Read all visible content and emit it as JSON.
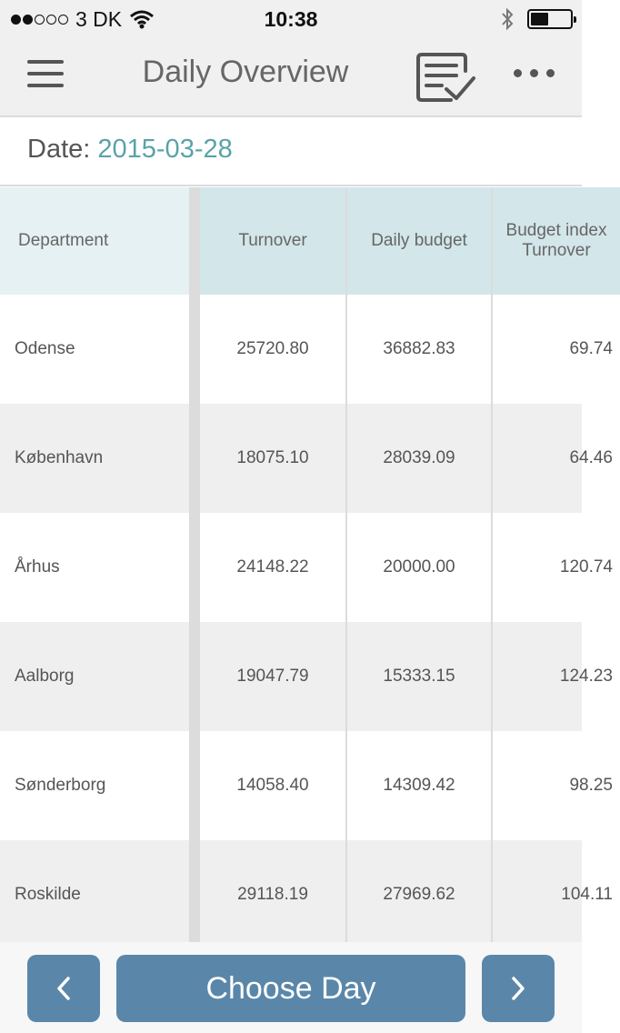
{
  "status_bar": {
    "carrier": "3 DK",
    "time": "10:38",
    "signal_bars": 2,
    "battery_level": 0.45
  },
  "nav": {
    "title": "Daily Overview"
  },
  "date": {
    "label": "Date:",
    "value": "2015-03-28"
  },
  "table": {
    "headers": {
      "department": "Department",
      "turnover": "Turnover",
      "daily_budget": "Daily budget",
      "budget_index_line1": "Budget index",
      "budget_index_line2": "Turnover"
    },
    "rows": [
      {
        "department": "Odense",
        "turnover": "25720.80",
        "daily_budget": "36882.83",
        "budget_index": "69.74"
      },
      {
        "department": "København",
        "turnover": "18075.10",
        "daily_budget": "28039.09",
        "budget_index": "64.46"
      },
      {
        "department": "Århus",
        "turnover": "24148.22",
        "daily_budget": "20000.00",
        "budget_index": "120.74"
      },
      {
        "department": "Aalborg",
        "turnover": "19047.79",
        "daily_budget": "15333.15",
        "budget_index": "124.23"
      },
      {
        "department": "Sønderborg",
        "turnover": "14058.40",
        "daily_budget": "14309.42",
        "budget_index": "98.25"
      },
      {
        "department": "Roskilde",
        "turnover": "29118.19",
        "daily_budget": "27969.62",
        "budget_index": "104.11"
      }
    ]
  },
  "footer": {
    "prev_label": "‹",
    "choose_label": "Choose Day",
    "next_label": "›"
  },
  "colors": {
    "accent_date": "#5aa3a8",
    "button": "#5a87a9",
    "header_bg": "#d3e6ea"
  }
}
